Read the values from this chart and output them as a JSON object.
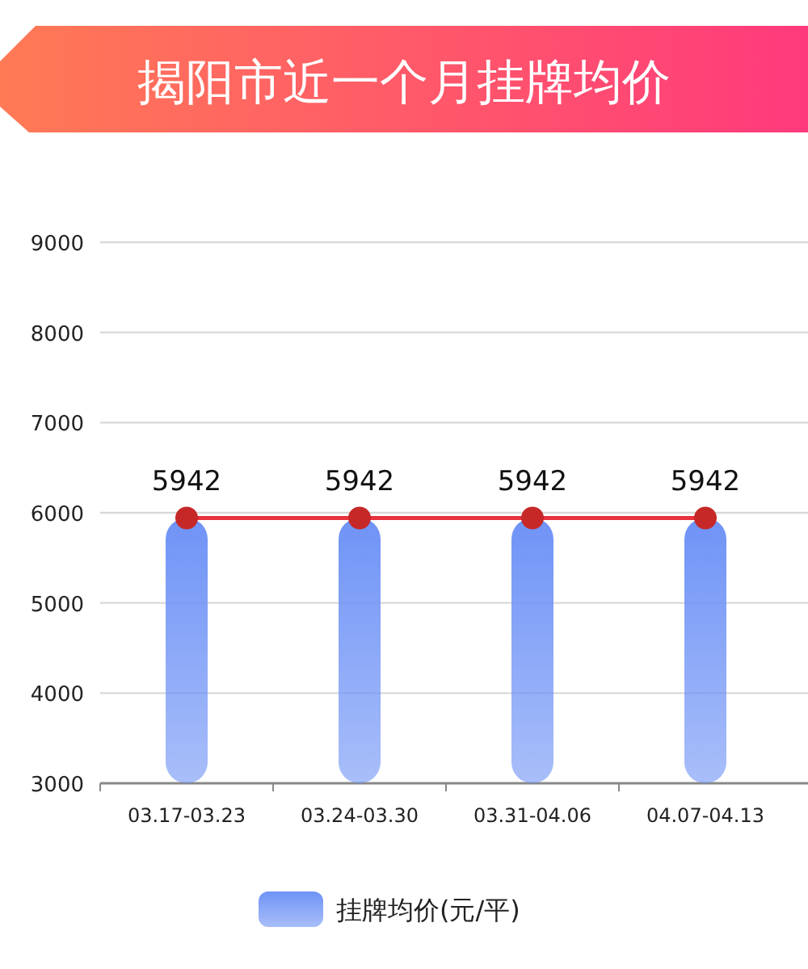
{
  "chart_data": {
    "type": "bar",
    "title": "揭阳市近一个月挂牌均价",
    "categories": [
      "03.17-03.23",
      "03.24-03.30",
      "03.31-04.06",
      "04.07-04.13"
    ],
    "series": [
      {
        "name": "挂牌均价(元/平)",
        "color": "#6f93f6",
        "values": [
          5942,
          5942,
          5942,
          5942
        ]
      },
      {
        "type": "line",
        "color": "#e8323c",
        "values": [
          5942,
          5942,
          5942,
          5942
        ],
        "value_labels": [
          "5942",
          "5942",
          "5942",
          "5942"
        ]
      }
    ],
    "marker": "circle",
    "line_style": "solid",
    "ylim": [
      3000,
      9000
    ],
    "yticks": [
      3000,
      4000,
      5000,
      6000,
      7000,
      8000,
      9000
    ],
    "grid": "y",
    "legend": "bottom"
  }
}
